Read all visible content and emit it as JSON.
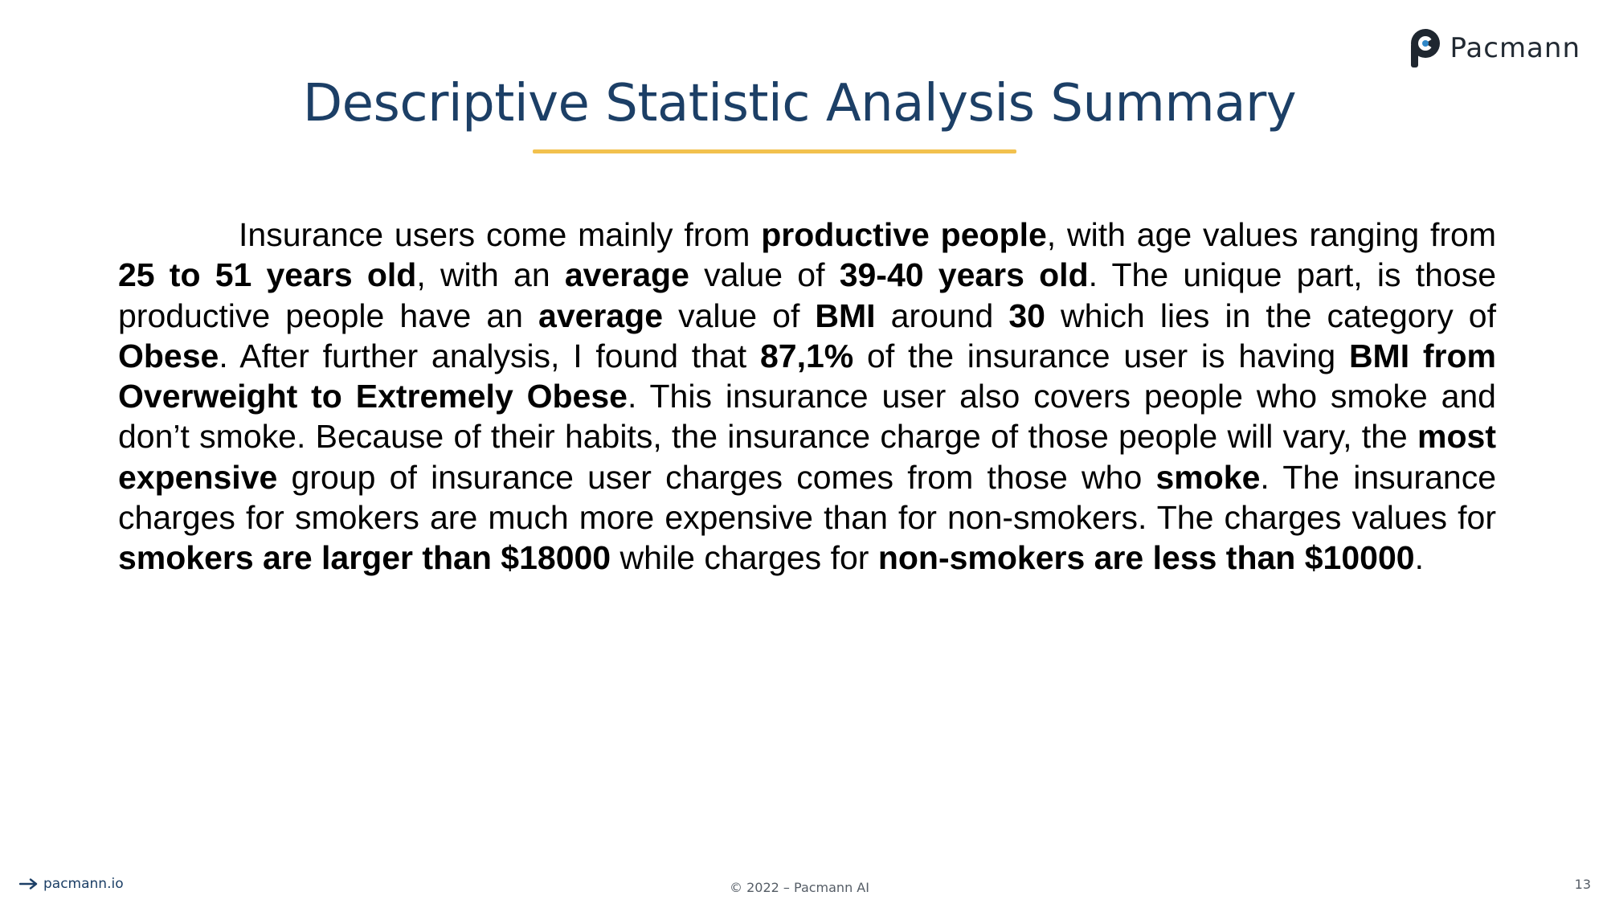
{
  "brand": {
    "logo_text": "Pacmann",
    "logo_icon": "pacmann-logo-icon"
  },
  "slide": {
    "title": "Descriptive Statistic Analysis Summary",
    "accent_color": "#f2c14e",
    "title_color": "#1c3f66",
    "paragraph": [
      {
        "t": "Insurance users come mainly from ",
        "b": false
      },
      {
        "t": "productive people",
        "b": true
      },
      {
        "t": ", with age values ranging from ",
        "b": false
      },
      {
        "t": "25 to 51 years old",
        "b": true
      },
      {
        "t": ", with an ",
        "b": false
      },
      {
        "t": "average",
        "b": true
      },
      {
        "t": " value of ",
        "b": false
      },
      {
        "t": "39-40 years old",
        "b": true
      },
      {
        "t": ". The unique part, is those productive people have an ",
        "b": false
      },
      {
        "t": "average",
        "b": true
      },
      {
        "t": " value of ",
        "b": false
      },
      {
        "t": "BMI",
        "b": true
      },
      {
        "t": " around ",
        "b": false
      },
      {
        "t": "30",
        "b": true
      },
      {
        "t": " which lies in the category of ",
        "b": false
      },
      {
        "t": "Obese",
        "b": true
      },
      {
        "t": ". After further analysis, I found that ",
        "b": false
      },
      {
        "t": "87,1%",
        "b": true
      },
      {
        "t": " of the insurance user is having ",
        "b": false
      },
      {
        "t": "BMI from Overweight to Extremely Obese",
        "b": true
      },
      {
        "t": ". This insurance user also covers people who smoke and don’t smoke. Because of their habits, the insurance charge of those people will vary, the ",
        "b": false
      },
      {
        "t": "most expensive",
        "b": true
      },
      {
        "t": " group of insurance user charges comes from those who ",
        "b": false
      },
      {
        "t": "smoke",
        "b": true
      },
      {
        "t": ". The insurance charges for smokers are much more expensive than for non-smokers. The charges values for ",
        "b": false
      },
      {
        "t": "smokers are larger than $18000",
        "b": true
      },
      {
        "t": " while charges for ",
        "b": false
      },
      {
        "t": "non-smokers are less than $10000",
        "b": true
      },
      {
        "t": ".",
        "b": false
      }
    ]
  },
  "footer": {
    "link_icon": "arrow-right-icon",
    "link_text": "pacmann.io",
    "copyright": "© 2022 – Pacmann AI",
    "page_number": "13"
  }
}
